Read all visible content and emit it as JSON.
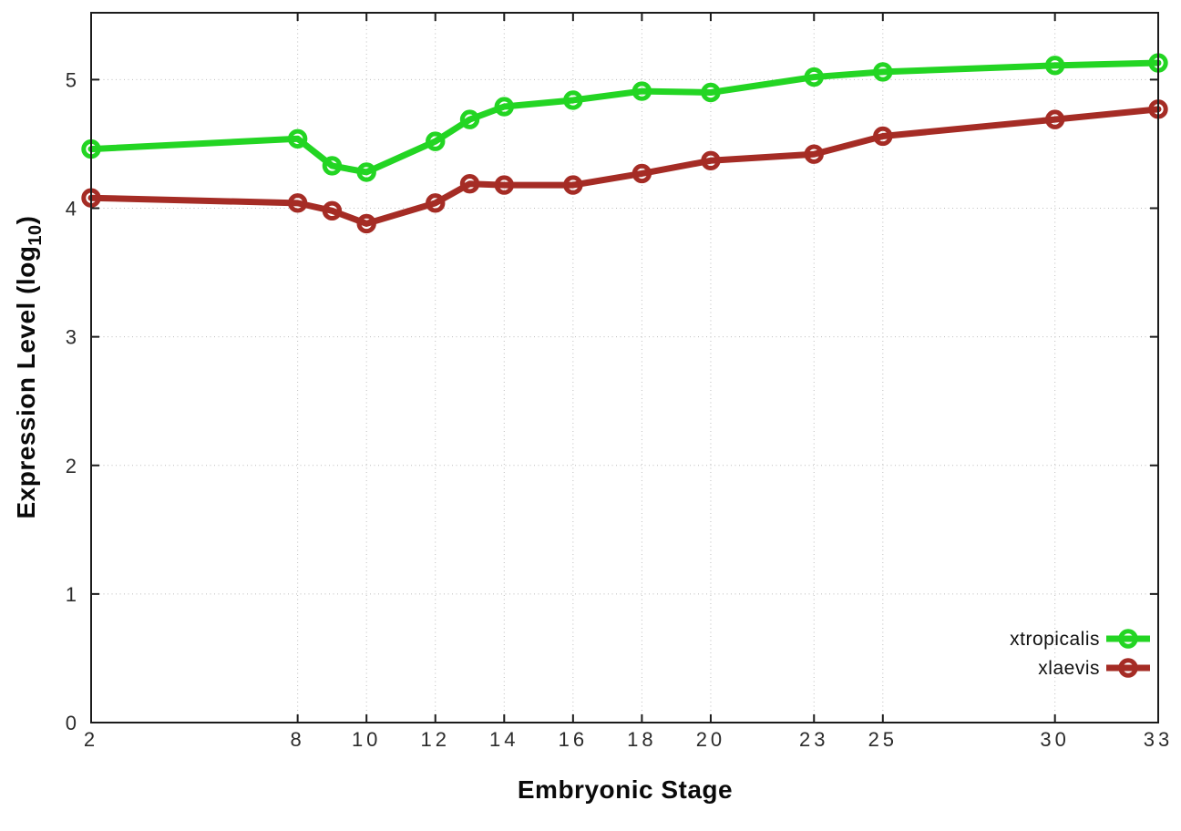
{
  "chart_data": {
    "type": "line",
    "title": "",
    "xlabel": "Embryonic Stage",
    "ylabel": "Expression Level (log10)",
    "ylabel_parts": {
      "main": "Expression Level (log",
      "sub": "10",
      "close": ")"
    },
    "x": [
      2,
      8,
      9,
      10,
      12,
      13,
      14,
      16,
      18,
      20,
      23,
      25,
      30,
      33
    ],
    "series": [
      {
        "name": "xtropicalis",
        "color": "#23d523",
        "values": [
          4.46,
          4.54,
          4.33,
          4.28,
          4.52,
          4.69,
          4.79,
          4.84,
          4.91,
          4.9,
          5.02,
          5.06,
          5.11,
          5.13
        ]
      },
      {
        "name": "xlaevis",
        "color": "#a52c25",
        "values": [
          4.08,
          4.04,
          3.98,
          3.88,
          4.04,
          4.19,
          4.18,
          4.18,
          4.27,
          4.37,
          4.42,
          4.56,
          4.69,
          4.77
        ]
      }
    ],
    "x_ticks": [
      2,
      8,
      10,
      12,
      14,
      16,
      18,
      20,
      23,
      25,
      30,
      33
    ],
    "y_ticks": [
      0,
      1,
      2,
      3,
      4,
      5
    ],
    "xlim": [
      2,
      33
    ],
    "ylim": [
      0,
      5.52
    ],
    "grid": true,
    "legend_position": "inside-bottom-right",
    "marker": "open-circle"
  },
  "colors": {
    "background": "#ffffff",
    "border": "#1c1c1c",
    "grid": "#bdbdbd",
    "tick_label": "#2b2b2b",
    "series_green": "#23d523",
    "series_red": "#a52c25"
  }
}
